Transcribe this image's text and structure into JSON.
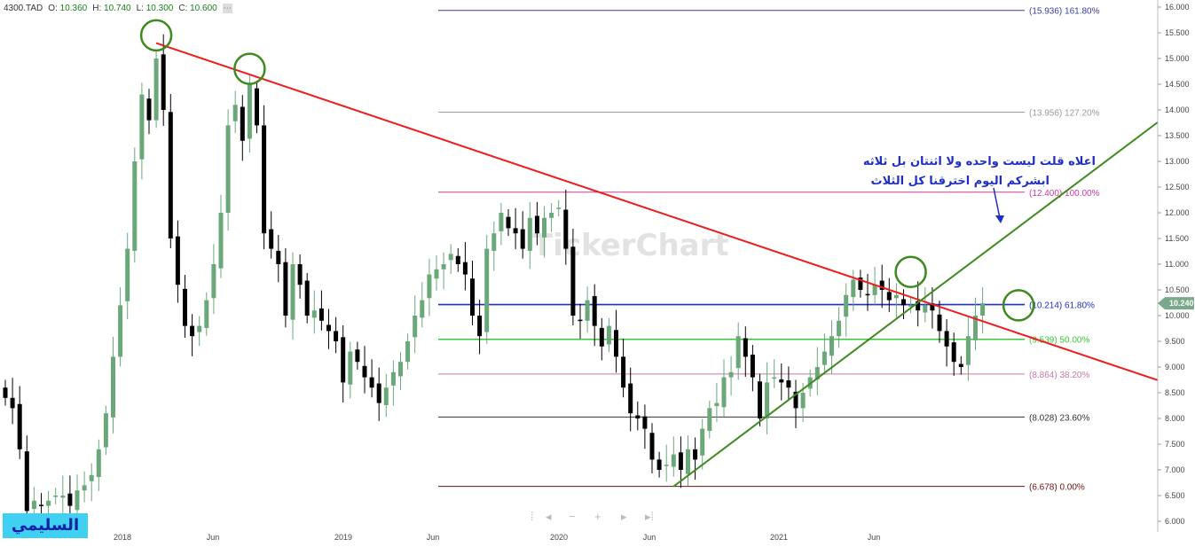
{
  "header": {
    "symbol": "4300.TAD",
    "o_label": "O:",
    "o_value": "10.360",
    "h_label": "H:",
    "h_value": "10.740",
    "l_label": "L:",
    "l_value": "10.300",
    "c_label": "C:",
    "c_value": "10.600",
    "settings_icon": "gear-icon"
  },
  "logo_text": "السليمي",
  "watermark": "TickerChart",
  "annotation": {
    "line1": "اعلاه قلت ليست واحده ولا اثنتان بل ثلاثه",
    "line2": "ابشركم اليوم اخترقنا كل الثلاث"
  },
  "last_price": "10.240",
  "colors": {
    "up": "#6aa87a",
    "down": "#000000",
    "red_trend": "#ee1c1c",
    "green_trend": "#3d8a1e",
    "circle": "#3d8a1e",
    "price_tag": "#7aa88a",
    "annotation": "#1f2fc4"
  },
  "chart_data": {
    "type": "candlestick",
    "yaxis": {
      "min": 6.0,
      "max": 16.0,
      "ticks": [
        "6.000",
        "6.500",
        "7.000",
        "7.500",
        "8.000",
        "8.500",
        "9.000",
        "9.500",
        "10.000",
        "10.500",
        "11.000",
        "11.500",
        "12.000",
        "12.500",
        "13.000",
        "13.500",
        "14.000",
        "14.500",
        "15.000",
        "15.500",
        "16.000"
      ]
    },
    "xaxis": {
      "labels": [
        "2018",
        "Jun",
        "2019",
        "Jun",
        "2020",
        "Jun",
        "2021",
        "Jun"
      ]
    },
    "fib_levels": [
      {
        "price": 15.936,
        "label": "(15.936) 161.80%",
        "color": "#3a3aa0"
      },
      {
        "price": 13.956,
        "label": "(13.956) 127.20%",
        "color": "#9a9a9a"
      },
      {
        "price": 12.4,
        "label": "(12.400) 100.00%",
        "color": "#c83aa0"
      },
      {
        "price": 10.214,
        "label": "(10.214) 61.80%",
        "color": "#1f2fc4"
      },
      {
        "price": 9.539,
        "label": "(9.539) 50.00%",
        "color": "#3ac83a"
      },
      {
        "price": 8.864,
        "label": "(8.864) 38.20%",
        "color": "#c878a8"
      },
      {
        "price": 8.028,
        "label": "(8.028) 23.60%",
        "color": "#333333"
      },
      {
        "price": 6.678,
        "label": "(6.678) 0.00%",
        "color": "#6a1010"
      }
    ],
    "closes": [
      8.4,
      8.2,
      7.4,
      6.2,
      6.4,
      6.3,
      6.4,
      6.5,
      6.5,
      6.3,
      6.6,
      6.7,
      6.9,
      7.4,
      8.1,
      9.2,
      10.2,
      11.3,
      13.0,
      14.3,
      13.8,
      15.0,
      14.0,
      11.5,
      10.6,
      9.8,
      9.6,
      9.8,
      10.3,
      11.0,
      12.0,
      13.7,
      14.1,
      13.4,
      14.5,
      13.7,
      11.6,
      11.3,
      11.0,
      10.0,
      11.0,
      10.6,
      10.0,
      10.1,
      9.9,
      9.7,
      9.5,
      8.7,
      9.3,
      9.1,
      8.8,
      8.6,
      8.3,
      8.6,
      8.9,
      9.1,
      9.5,
      10.0,
      10.3,
      10.8,
      10.9,
      11.0,
      11.2,
      11.0,
      10.8,
      10.0,
      9.6,
      11.3,
      11.6,
      12.0,
      11.7,
      11.6,
      11.3,
      11.9,
      11.6,
      11.9,
      12.0,
      12.1,
      11.3,
      10.0,
      9.9,
      10.3,
      9.8,
      9.4,
      9.8,
      9.2,
      8.6,
      8.1,
      8.0,
      7.8,
      7.2,
      7.0,
      7.1,
      7.3,
      7.0,
      7.4,
      7.2,
      7.8,
      8.2,
      8.3,
      8.8,
      8.9,
      9.6,
      9.2,
      8.8,
      8.0,
      8.7,
      8.8,
      8.7,
      8.6,
      8.2,
      8.5,
      8.8,
      9.0,
      9.3,
      9.6,
      9.9,
      10.4,
      10.7,
      10.5,
      10.4,
      10.6,
      10.5,
      10.3,
      10.4,
      10.2,
      10.2,
      10.1,
      10.2,
      10.1,
      9.7,
      9.4,
      9.1,
      9.0,
      9.6,
      10.0,
      10.24
    ],
    "trendlines": [
      {
        "name": "",
        "from": {
          "index": 21,
          "price": 15.3
        },
        "to": {
          "index": 146,
          "price": 9.42
        }
      },
      {
        "name": "",
        "from": {
          "index": 93,
          "price": 6.678
        },
        "to": {
          "index": 146,
          "price": 12.25
        }
      }
    ],
    "circles": [
      {
        "index": 21,
        "price": 15.45
      },
      {
        "index": 34,
        "price": 14.8
      },
      {
        "index": 126,
        "price": 10.85
      },
      {
        "index": 141,
        "price": 10.2
      }
    ]
  }
}
